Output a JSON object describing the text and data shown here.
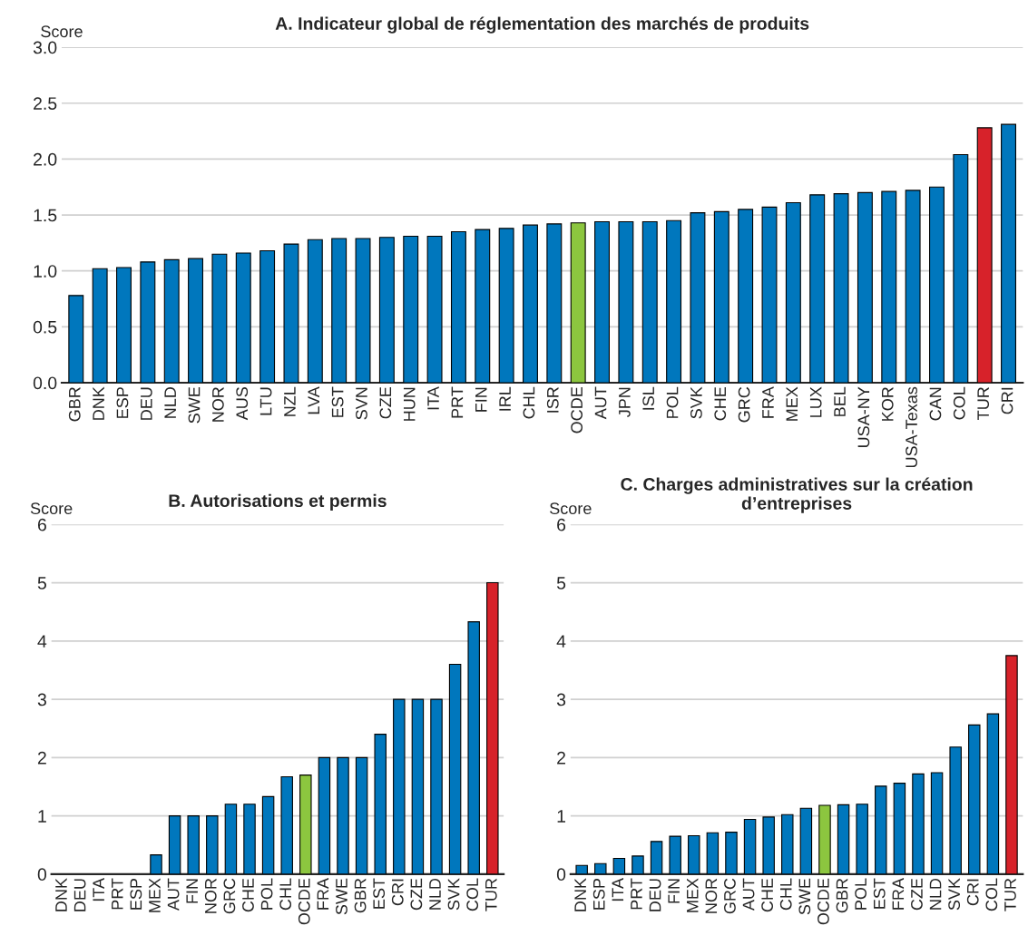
{
  "chart_data": [
    {
      "type": "bar",
      "title": "A. Indicateur global de réglementation des marchés de produits",
      "ylabel": "Score",
      "categories": [
        "GBR",
        "DNK",
        "ESP",
        "DEU",
        "NLD",
        "SWE",
        "NOR",
        "AUS",
        "LTU",
        "NZL",
        "LVA",
        "EST",
        "SVN",
        "CZE",
        "HUN",
        "ITA",
        "PRT",
        "FIN",
        "IRL",
        "CHL",
        "ISR",
        "OCDE",
        "AUT",
        "JPN",
        "ISL",
        "POL",
        "SVK",
        "CHE",
        "GRC",
        "FRA",
        "MEX",
        "LUX",
        "BEL",
        "USA-NY",
        "KOR",
        "USA-Texas",
        "CAN",
        "COL",
        "TUR",
        "CRI"
      ],
      "values": [
        0.78,
        1.02,
        1.03,
        1.08,
        1.1,
        1.11,
        1.15,
        1.16,
        1.18,
        1.24,
        1.28,
        1.29,
        1.29,
        1.3,
        1.31,
        1.31,
        1.35,
        1.37,
        1.38,
        1.41,
        1.42,
        1.43,
        1.44,
        1.44,
        1.44,
        1.45,
        1.52,
        1.53,
        1.55,
        1.57,
        1.61,
        1.68,
        1.69,
        1.7,
        1.71,
        1.72,
        1.75,
        2.04,
        2.28,
        2.31
      ],
      "colors": [
        "#0077bd",
        "#0077bd",
        "#0077bd",
        "#0077bd",
        "#0077bd",
        "#0077bd",
        "#0077bd",
        "#0077bd",
        "#0077bd",
        "#0077bd",
        "#0077bd",
        "#0077bd",
        "#0077bd",
        "#0077bd",
        "#0077bd",
        "#0077bd",
        "#0077bd",
        "#0077bd",
        "#0077bd",
        "#0077bd",
        "#0077bd",
        "#8cc63f",
        "#0077bd",
        "#0077bd",
        "#0077bd",
        "#0077bd",
        "#0077bd",
        "#0077bd",
        "#0077bd",
        "#0077bd",
        "#0077bd",
        "#0077bd",
        "#0077bd",
        "#0077bd",
        "#0077bd",
        "#0077bd",
        "#0077bd",
        "#0077bd",
        "#d7222a",
        "#0077bd"
      ],
      "ylim": [
        0,
        3
      ],
      "yticks": [
        {
          "value": 0,
          "label": "0.0"
        },
        {
          "value": 0.5,
          "label": "0.5"
        },
        {
          "value": 1,
          "label": "1.0"
        },
        {
          "value": 1.5,
          "label": "1.5"
        },
        {
          "value": 2,
          "label": "2.0"
        },
        {
          "value": 2.5,
          "label": "2.5"
        },
        {
          "value": 3,
          "label": "3.0"
        }
      ],
      "grid": "y"
    },
    {
      "type": "bar",
      "title": "B. Autorisations et permis",
      "ylabel": "Score",
      "categories": [
        "DNK",
        "DEU",
        "ITA",
        "PRT",
        "ESP",
        "MEX",
        "AUT",
        "FIN",
        "NOR",
        "GRC",
        "CHE",
        "POL",
        "CHL",
        "OCDE",
        "FRA",
        "SWE",
        "GBR",
        "EST",
        "CRI",
        "CZE",
        "NLD",
        "SVK",
        "COL",
        "TUR"
      ],
      "values": [
        0,
        0,
        0,
        0,
        0,
        0.33,
        1,
        1,
        1,
        1.2,
        1.2,
        1.33,
        1.67,
        1.7,
        2,
        2,
        2,
        2.4,
        3,
        3,
        3,
        3.6,
        4.33,
        5
      ],
      "colors": [
        "#0077bd",
        "#0077bd",
        "#0077bd",
        "#0077bd",
        "#0077bd",
        "#0077bd",
        "#0077bd",
        "#0077bd",
        "#0077bd",
        "#0077bd",
        "#0077bd",
        "#0077bd",
        "#0077bd",
        "#8cc63f",
        "#0077bd",
        "#0077bd",
        "#0077bd",
        "#0077bd",
        "#0077bd",
        "#0077bd",
        "#0077bd",
        "#0077bd",
        "#0077bd",
        "#d7222a"
      ],
      "ylim": [
        0,
        6
      ],
      "yticks": [
        0,
        1,
        2,
        3,
        4,
        5,
        6
      ],
      "grid": "y"
    },
    {
      "type": "bar",
      "title": "C. Charges administratives sur la création d’entreprises",
      "ylabel": "Score",
      "categories": [
        "DNK",
        "ESP",
        "ITA",
        "PRT",
        "DEU",
        "FIN",
        "MEX",
        "NOR",
        "GRC",
        "AUT",
        "CHE",
        "CHL",
        "SWE",
        "OCDE",
        "GBR",
        "POL",
        "EST",
        "FRA",
        "CZE",
        "NLD",
        "SVK",
        "CRI",
        "COL",
        "TUR"
      ],
      "values": [
        0.15,
        0.18,
        0.27,
        0.31,
        0.56,
        0.65,
        0.66,
        0.71,
        0.72,
        0.94,
        0.98,
        1.02,
        1.13,
        1.18,
        1.19,
        1.2,
        1.51,
        1.56,
        1.72,
        1.74,
        2.18,
        2.56,
        2.75,
        3.75
      ],
      "colors": [
        "#0077bd",
        "#0077bd",
        "#0077bd",
        "#0077bd",
        "#0077bd",
        "#0077bd",
        "#0077bd",
        "#0077bd",
        "#0077bd",
        "#0077bd",
        "#0077bd",
        "#0077bd",
        "#0077bd",
        "#8cc63f",
        "#0077bd",
        "#0077bd",
        "#0077bd",
        "#0077bd",
        "#0077bd",
        "#0077bd",
        "#0077bd",
        "#0077bd",
        "#0077bd",
        "#d7222a"
      ],
      "ylim": [
        0,
        6
      ],
      "yticks": [
        0,
        1,
        2,
        3,
        4,
        5,
        6
      ],
      "grid": "y"
    }
  ]
}
